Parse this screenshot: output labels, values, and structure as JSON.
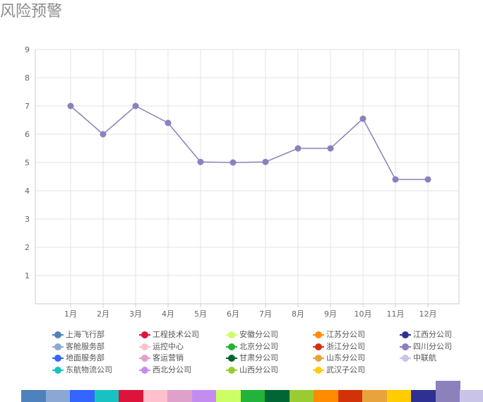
{
  "page": {
    "title": "风险预警"
  },
  "chart_data": {
    "type": "line",
    "categories": [
      "1月",
      "2月",
      "3月",
      "4月",
      "5月",
      "6月",
      "7月",
      "8月",
      "9月",
      "10月",
      "11月",
      "12月"
    ],
    "series": [
      {
        "values": [
          7,
          6,
          7,
          6.4,
          5.02,
          5,
          5.02,
          5.5,
          5.5,
          6.55,
          4.4,
          4.4
        ],
        "color": "#8c80bd"
      }
    ],
    "yticks": [
      "1",
      "2",
      "3",
      "4",
      "5",
      "6",
      "7",
      "8",
      "9"
    ],
    "ylim": [
      0,
      9
    ],
    "grid": true,
    "legend_position": "bottom"
  },
  "legend": [
    {
      "label": "上海飞行部",
      "color": "#4f81bd"
    },
    {
      "label": "工程技术公司",
      "color": "#dc143c"
    },
    {
      "label": "安徽分公司",
      "color": "#ccff66"
    },
    {
      "label": "江苏分公司",
      "color": "#ff8c00"
    },
    {
      "label": "江西分公司",
      "color": "#2e3192"
    },
    {
      "label": "客舱服务部",
      "color": "#8ba8d4"
    },
    {
      "label": "运控中心",
      "color": "#ffc0cb"
    },
    {
      "label": "北京分公司",
      "color": "#22b33a"
    },
    {
      "label": "浙江分公司",
      "color": "#d2320a"
    },
    {
      "label": "四川分公司",
      "color": "#8c80bd"
    },
    {
      "label": "地面服务部",
      "color": "#3366ff"
    },
    {
      "label": "客运营销",
      "color": "#e0a0cc"
    },
    {
      "label": "甘肃分公司",
      "color": "#006633"
    },
    {
      "label": "山东分公司",
      "color": "#e8a33c"
    },
    {
      "label": "中联航",
      "color": "#c8c4e8"
    },
    {
      "label": "东航物流公司",
      "color": "#19c2c2"
    },
    {
      "label": "西北分公司",
      "color": "#c58cf0"
    },
    {
      "label": "山西分公司",
      "color": "#99cc33"
    },
    {
      "label": "武汉子公司",
      "color": "#ffcc00"
    }
  ],
  "color_strip": [
    "#4f81bd",
    "#8ba8d4",
    "#3366ff",
    "#19c2c2",
    "#dc143c",
    "#ffc0cb",
    "#e0a0cc",
    "#c58cf0",
    "#ccff66",
    "#22b33a",
    "#006633",
    "#99cc33",
    "#ff8c00",
    "#d2320a",
    "#e8a33c",
    "#ffcc00",
    "#2e3192",
    "#8c80bd",
    "#c8c4e8"
  ],
  "color_strip_active": 17
}
